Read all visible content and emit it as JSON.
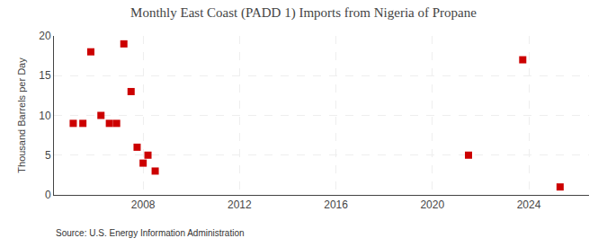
{
  "chart_data": {
    "type": "scatter",
    "title": "Monthly East Coast (PADD 1) Imports from Nigeria of Propane",
    "ylabel": "Thousand Barrels per Day",
    "annotations": [
      "Source: U.S. Energy Information Administration"
    ],
    "x": [
      2005.1,
      2005.5,
      2005.83,
      2006.25,
      2006.6,
      2006.9,
      2007.2,
      2007.5,
      2007.75,
      2008.0,
      2008.2,
      2008.5,
      2021.5,
      2023.75,
      2025.3
    ],
    "values": [
      9.0,
      9.0,
      18.0,
      10.0,
      9.0,
      9.0,
      19.0,
      13.0,
      6.0,
      4.0,
      5.0,
      3.0,
      5.0,
      17.0,
      1.0
    ],
    "color": "#cc0000",
    "marker": "square",
    "xlim": [
      2004.3,
      2026.5
    ],
    "xticks": [
      2008,
      2012,
      2016,
      2020,
      2024
    ],
    "ylim": [
      0,
      20
    ],
    "yticks": [
      0,
      5,
      10,
      15,
      20
    ],
    "grid": true
  }
}
